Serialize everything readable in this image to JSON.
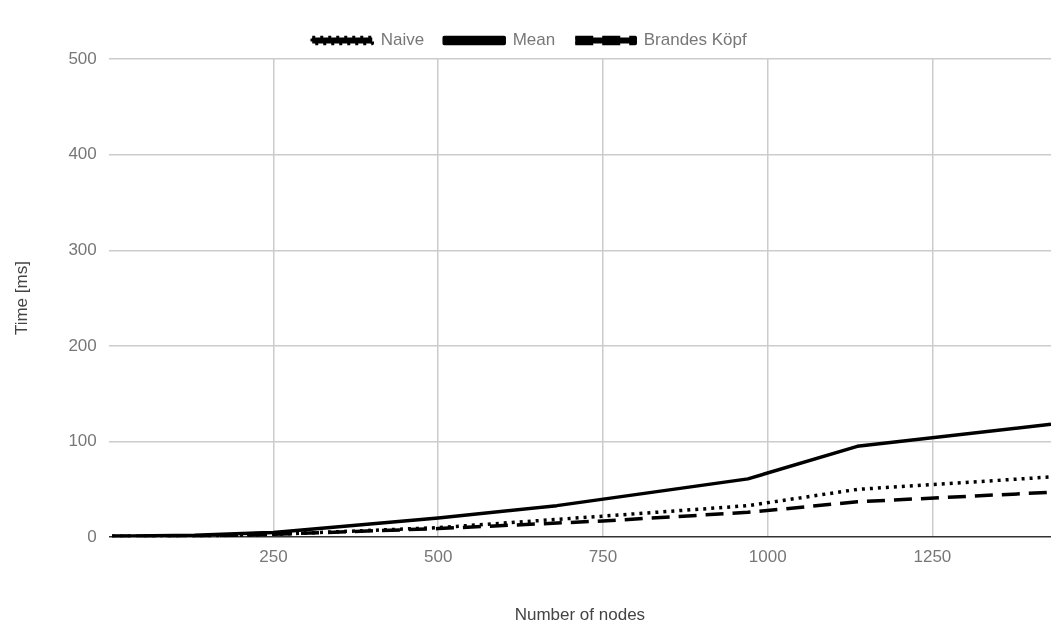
{
  "chart_data": {
    "type": "line",
    "xlabel": "Number of nodes",
    "ylabel": "Time [ms]",
    "xlim": [
      0,
      1430
    ],
    "xticks": [
      250,
      500,
      750,
      1000,
      1250
    ],
    "ylim": [
      0,
      500
    ],
    "yticks": [
      0,
      100,
      200,
      300,
      400,
      500
    ],
    "grid": true,
    "legend": "top",
    "marker": "none",
    "series": [
      {
        "name": "Naive",
        "color": "#000000",
        "line_style": "dotted",
        "x": [
          5,
          130,
          250,
          500,
          750,
          970,
          1136,
          1430
        ],
        "values": [
          1,
          1,
          3,
          10,
          22,
          33,
          50,
          63
        ]
      },
      {
        "name": "Mean",
        "color": "#000000",
        "line_style": "solid",
        "x": [
          5,
          130,
          250,
          500,
          680,
          970,
          1136,
          1430
        ],
        "values": [
          1,
          2,
          5,
          20,
          33,
          61,
          95,
          118
        ]
      },
      {
        "name": "Brandes Köpf",
        "color": "#000000",
        "line_style": "dashed",
        "x": [
          5,
          130,
          250,
          500,
          750,
          970,
          1136,
          1430
        ],
        "values": [
          1,
          1,
          3,
          9,
          17,
          26,
          37,
          47
        ]
      }
    ]
  }
}
